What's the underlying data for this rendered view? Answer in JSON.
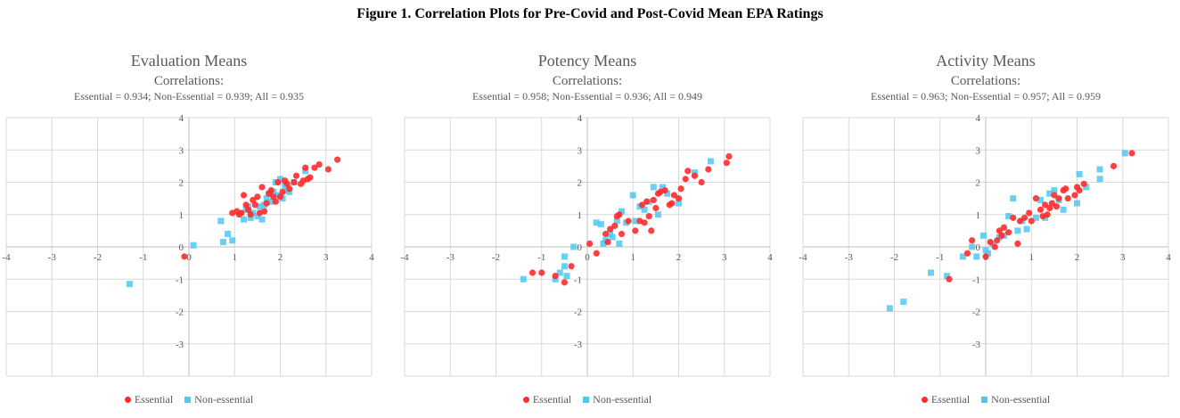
{
  "figure_title": "Figure 1. Correlation Plots for Pre-Covid and Post-Covid Mean EPA Ratings",
  "colors": {
    "essential": "#ff2b2b",
    "non_essential": "#4fc8f0",
    "grid": "#d9d9d9",
    "axis": "#bfbfbf"
  },
  "chart_data": [
    {
      "type": "scatter",
      "title": "Evaluation Means",
      "subtitle": "Correlations:",
      "correlations": "Essential = 0.934; Non-Essential = 0.939; All = 0.935",
      "xlim": [
        -4,
        4
      ],
      "ylim": [
        -4,
        4
      ],
      "x_ticks": [
        "-4",
        "-3",
        "-2",
        "-1",
        "0",
        "1",
        "2",
        "3",
        "4"
      ],
      "y_ticks": [
        "4",
        "3",
        "2",
        "1",
        "0",
        "-1",
        "-2",
        "-3"
      ],
      "grid": true,
      "legend": "bottom-center",
      "series": [
        {
          "name": "Essential",
          "marker": "circle",
          "points": [
            [
              -0.1,
              -0.3
            ],
            [
              0.95,
              1.05
            ],
            [
              1.05,
              1.1
            ],
            [
              1.1,
              1.0
            ],
            [
              1.15,
              1.05
            ],
            [
              1.2,
              1.6
            ],
            [
              1.25,
              1.3
            ],
            [
              1.3,
              1.15
            ],
            [
              1.35,
              1.0
            ],
            [
              1.4,
              1.45
            ],
            [
              1.45,
              1.3
            ],
            [
              1.5,
              1.55
            ],
            [
              1.55,
              1.05
            ],
            [
              1.6,
              1.85
            ],
            [
              1.65,
              1.1
            ],
            [
              1.7,
              1.35
            ],
            [
              1.75,
              1.65
            ],
            [
              1.8,
              1.75
            ],
            [
              1.85,
              1.55
            ],
            [
              1.9,
              1.4
            ],
            [
              1.95,
              2.0
            ],
            [
              2.0,
              1.55
            ],
            [
              2.05,
              1.7
            ],
            [
              2.1,
              2.05
            ],
            [
              2.15,
              1.95
            ],
            [
              2.2,
              1.8
            ],
            [
              2.3,
              2.0
            ],
            [
              2.35,
              2.2
            ],
            [
              2.45,
              1.95
            ],
            [
              2.5,
              2.05
            ],
            [
              2.55,
              2.45
            ],
            [
              2.6,
              2.1
            ],
            [
              2.65,
              2.15
            ],
            [
              2.75,
              2.45
            ],
            [
              2.85,
              2.55
            ],
            [
              3.05,
              2.4
            ],
            [
              3.25,
              2.7
            ]
          ]
        },
        {
          "name": "Non-essential",
          "marker": "square",
          "points": [
            [
              -1.3,
              -1.15
            ],
            [
              0.1,
              0.05
            ],
            [
              0.7,
              0.8
            ],
            [
              0.75,
              0.15
            ],
            [
              0.85,
              0.4
            ],
            [
              0.95,
              0.2
            ],
            [
              1.2,
              0.85
            ],
            [
              1.25,
              1.15
            ],
            [
              1.3,
              1.25
            ],
            [
              1.35,
              0.9
            ],
            [
              1.4,
              1.05
            ],
            [
              1.5,
              0.95
            ],
            [
              1.55,
              1.25
            ],
            [
              1.6,
              0.85
            ],
            [
              1.65,
              1.3
            ],
            [
              1.7,
              1.5
            ],
            [
              1.75,
              1.65
            ],
            [
              1.8,
              1.4
            ],
            [
              1.85,
              1.7
            ],
            [
              1.9,
              2.0
            ],
            [
              1.95,
              1.6
            ],
            [
              2.0,
              2.1
            ],
            [
              2.05,
              1.5
            ],
            [
              2.1,
              1.9
            ],
            [
              2.15,
              1.75
            ],
            [
              2.2,
              1.7
            ],
            [
              2.3,
              2.0
            ],
            [
              2.55,
              2.35
            ]
          ]
        }
      ]
    },
    {
      "type": "scatter",
      "title": "Potency Means",
      "subtitle": "Correlations:",
      "correlations": "Essential = 0.958; Non-Essential = 0.936; All = 0.949",
      "xlim": [
        -4,
        4
      ],
      "ylim": [
        -4,
        4
      ],
      "x_ticks": [
        "-4",
        "-3",
        "-2",
        "-1",
        "0",
        "1",
        "2",
        "3",
        "4"
      ],
      "y_ticks": [
        "4",
        "3",
        "2",
        "1",
        "0",
        "-1",
        "-2",
        "-3"
      ],
      "grid": true,
      "legend": "bottom-center",
      "series": [
        {
          "name": "Essential",
          "marker": "circle",
          "points": [
            [
              -1.2,
              -0.8
            ],
            [
              -1.0,
              -0.8
            ],
            [
              -0.7,
              -0.9
            ],
            [
              -0.5,
              -1.1
            ],
            [
              -0.35,
              -0.6
            ],
            [
              0.05,
              0.1
            ],
            [
              0.2,
              -0.2
            ],
            [
              0.4,
              0.4
            ],
            [
              0.45,
              0.15
            ],
            [
              0.5,
              0.55
            ],
            [
              0.6,
              0.65
            ],
            [
              0.65,
              0.95
            ],
            [
              0.7,
              1.0
            ],
            [
              0.75,
              0.4
            ],
            [
              0.9,
              0.8
            ],
            [
              1.05,
              0.5
            ],
            [
              1.15,
              0.8
            ],
            [
              1.2,
              1.3
            ],
            [
              1.25,
              0.75
            ],
            [
              1.3,
              1.4
            ],
            [
              1.35,
              0.95
            ],
            [
              1.4,
              0.5
            ],
            [
              1.45,
              1.45
            ],
            [
              1.5,
              1.2
            ],
            [
              1.55,
              1.65
            ],
            [
              1.6,
              1.7
            ],
            [
              1.7,
              1.75
            ],
            [
              1.8,
              1.3
            ],
            [
              1.85,
              1.35
            ],
            [
              1.9,
              1.6
            ],
            [
              2.0,
              1.5
            ],
            [
              2.05,
              1.8
            ],
            [
              2.15,
              2.1
            ],
            [
              2.2,
              2.35
            ],
            [
              2.35,
              2.2
            ],
            [
              2.5,
              2.0
            ],
            [
              2.65,
              2.4
            ],
            [
              3.05,
              2.6
            ],
            [
              3.1,
              2.8
            ]
          ]
        },
        {
          "name": "Non-essential",
          "marker": "square",
          "points": [
            [
              -1.4,
              -1.0
            ],
            [
              -0.7,
              -1.0
            ],
            [
              -0.6,
              -0.8
            ],
            [
              -0.5,
              -0.6
            ],
            [
              -0.5,
              -0.3
            ],
            [
              -0.45,
              -0.9
            ],
            [
              -0.3,
              0.0
            ],
            [
              0.2,
              0.75
            ],
            [
              0.3,
              0.7
            ],
            [
              0.35,
              0.1
            ],
            [
              0.4,
              0.2
            ],
            [
              0.5,
              0.4
            ],
            [
              0.55,
              0.3
            ],
            [
              0.65,
              0.8
            ],
            [
              0.7,
              0.1
            ],
            [
              0.75,
              1.1
            ],
            [
              0.85,
              0.75
            ],
            [
              1.0,
              1.6
            ],
            [
              1.05,
              0.8
            ],
            [
              1.15,
              1.25
            ],
            [
              1.25,
              1.15
            ],
            [
              1.35,
              1.4
            ],
            [
              1.45,
              1.85
            ],
            [
              1.55,
              1.0
            ],
            [
              1.65,
              1.85
            ],
            [
              1.75,
              1.65
            ],
            [
              2.0,
              1.35
            ],
            [
              2.35,
              2.3
            ],
            [
              2.7,
              2.65
            ]
          ]
        }
      ]
    },
    {
      "type": "scatter",
      "title": "Activity Means",
      "subtitle": "Correlations:",
      "correlations": "Essential = 0.963; Non-Essential = 0.957; All = 0.959",
      "xlim": [
        -4,
        4
      ],
      "ylim": [
        -4,
        4
      ],
      "x_ticks": [
        "-4",
        "-3",
        "-2",
        "-1",
        "0",
        "1",
        "2",
        "3",
        "4"
      ],
      "y_ticks": [
        "4",
        "3",
        "2",
        "1",
        "0",
        "-1",
        "-2",
        "-3"
      ],
      "grid": true,
      "legend": "bottom-center",
      "series": [
        {
          "name": "Essential",
          "marker": "circle",
          "points": [
            [
              -0.8,
              -1.0
            ],
            [
              -0.4,
              -0.2
            ],
            [
              -0.3,
              0.2
            ],
            [
              0.0,
              -0.3
            ],
            [
              0.1,
              0.15
            ],
            [
              0.2,
              0.0
            ],
            [
              0.25,
              0.2
            ],
            [
              0.3,
              0.5
            ],
            [
              0.35,
              0.35
            ],
            [
              0.4,
              0.6
            ],
            [
              0.5,
              0.45
            ],
            [
              0.6,
              0.9
            ],
            [
              0.7,
              0.1
            ],
            [
              0.75,
              0.8
            ],
            [
              0.85,
              0.9
            ],
            [
              0.95,
              1.05
            ],
            [
              1.0,
              0.8
            ],
            [
              1.1,
              1.5
            ],
            [
              1.2,
              1.15
            ],
            [
              1.25,
              0.95
            ],
            [
              1.3,
              1.3
            ],
            [
              1.35,
              1.0
            ],
            [
              1.4,
              1.2
            ],
            [
              1.45,
              1.35
            ],
            [
              1.5,
              1.6
            ],
            [
              1.55,
              1.25
            ],
            [
              1.6,
              1.5
            ],
            [
              1.7,
              1.75
            ],
            [
              1.75,
              1.8
            ],
            [
              1.8,
              1.5
            ],
            [
              1.95,
              1.6
            ],
            [
              2.0,
              1.85
            ],
            [
              2.05,
              1.75
            ],
            [
              2.15,
              1.95
            ],
            [
              2.8,
              2.5
            ],
            [
              3.2,
              2.9
            ]
          ]
        },
        {
          "name": "Non-essential",
          "marker": "square",
          "points": [
            [
              -2.1,
              -1.9
            ],
            [
              -1.8,
              -1.7
            ],
            [
              -1.2,
              -0.8
            ],
            [
              -0.85,
              -0.9
            ],
            [
              -0.5,
              -0.3
            ],
            [
              -0.3,
              0.0
            ],
            [
              -0.2,
              -0.3
            ],
            [
              -0.05,
              0.35
            ],
            [
              0.0,
              -0.1
            ],
            [
              0.05,
              -0.2
            ],
            [
              0.15,
              0.1
            ],
            [
              0.3,
              0.3
            ],
            [
              0.4,
              0.35
            ],
            [
              0.5,
              0.95
            ],
            [
              0.6,
              1.5
            ],
            [
              0.7,
              0.5
            ],
            [
              0.8,
              0.8
            ],
            [
              0.9,
              0.55
            ],
            [
              1.1,
              0.9
            ],
            [
              1.2,
              1.45
            ],
            [
              1.3,
              0.9
            ],
            [
              1.4,
              1.65
            ],
            [
              1.5,
              1.75
            ],
            [
              1.6,
              1.45
            ],
            [
              1.7,
              1.15
            ],
            [
              2.0,
              1.35
            ],
            [
              2.05,
              2.25
            ],
            [
              2.2,
              1.85
            ],
            [
              2.5,
              2.4
            ],
            [
              2.5,
              2.1
            ],
            [
              3.05,
              2.9
            ]
          ]
        }
      ]
    }
  ]
}
